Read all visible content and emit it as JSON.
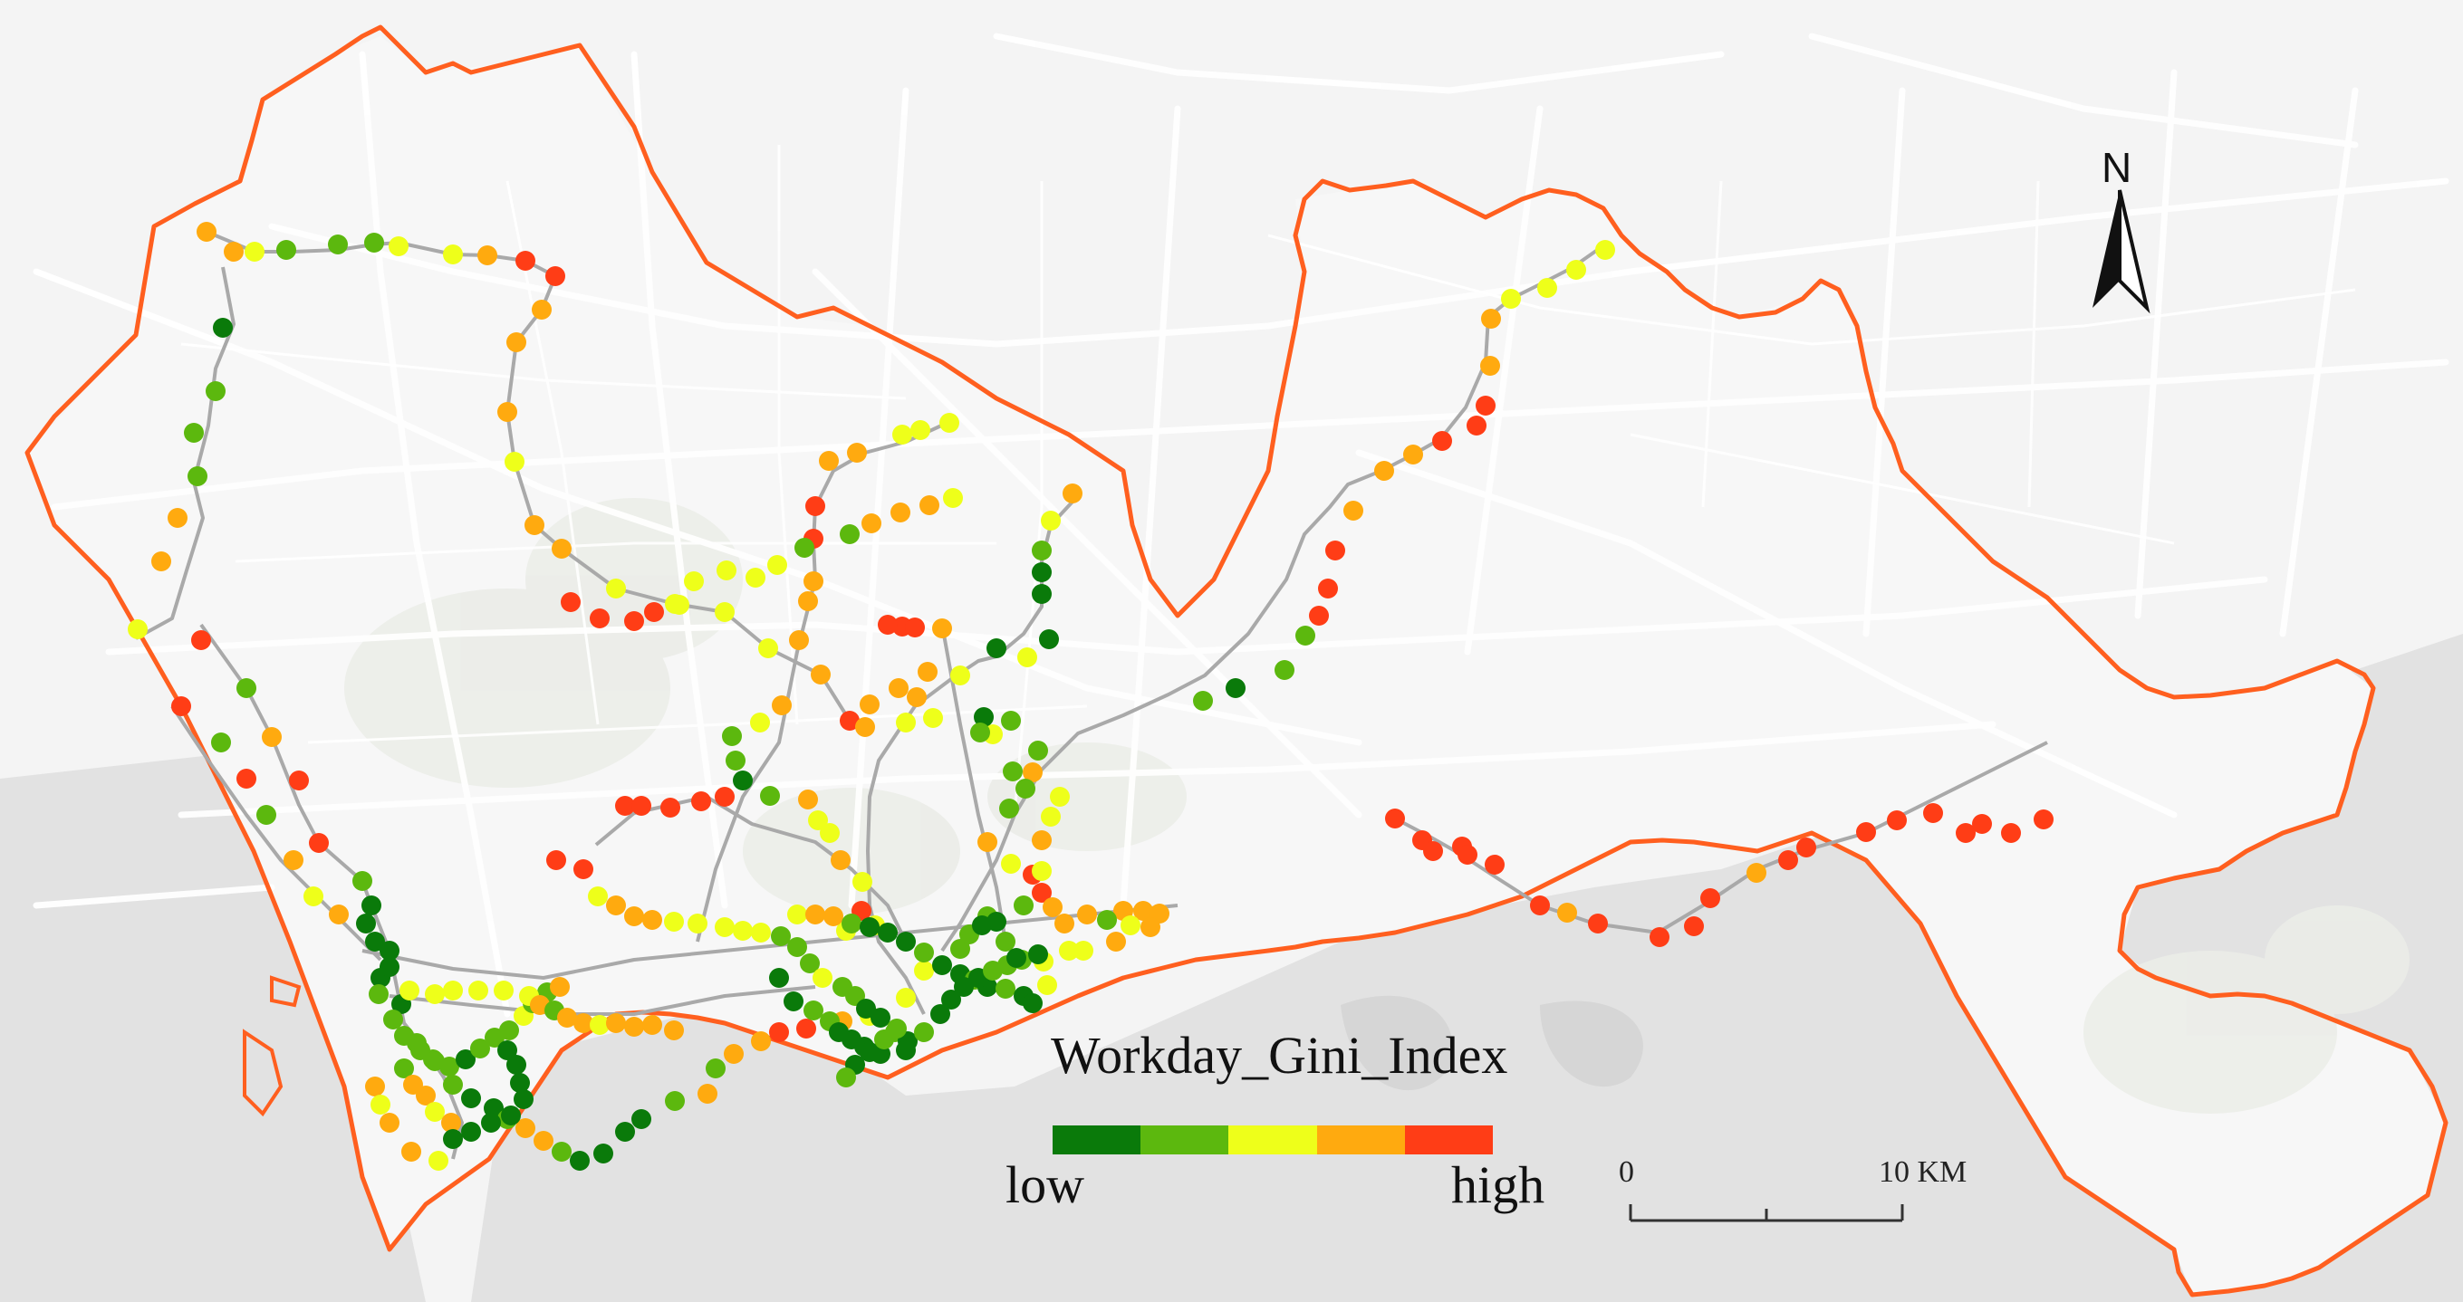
{
  "legend": {
    "title": "Workday_Gini_Index",
    "low_label": "low",
    "high_label": "high",
    "classes": [
      "#0a7a0a",
      "#5cb80e",
      "#eeff1a",
      "#ffaa0f",
      "#ff3d16"
    ]
  },
  "scale_bar": {
    "start_label": "0",
    "end_label": "10 KM"
  },
  "north_arrow": {
    "label": "N",
    "icon": "north-arrow-icon"
  },
  "colors": {
    "background": "#f4f4f4",
    "boundary": "#ff5f1f",
    "road": "#ffffff",
    "metro_line": "#a9a9a9",
    "water": "#e2e2e2",
    "green_area": "#e9ebe9"
  }
}
